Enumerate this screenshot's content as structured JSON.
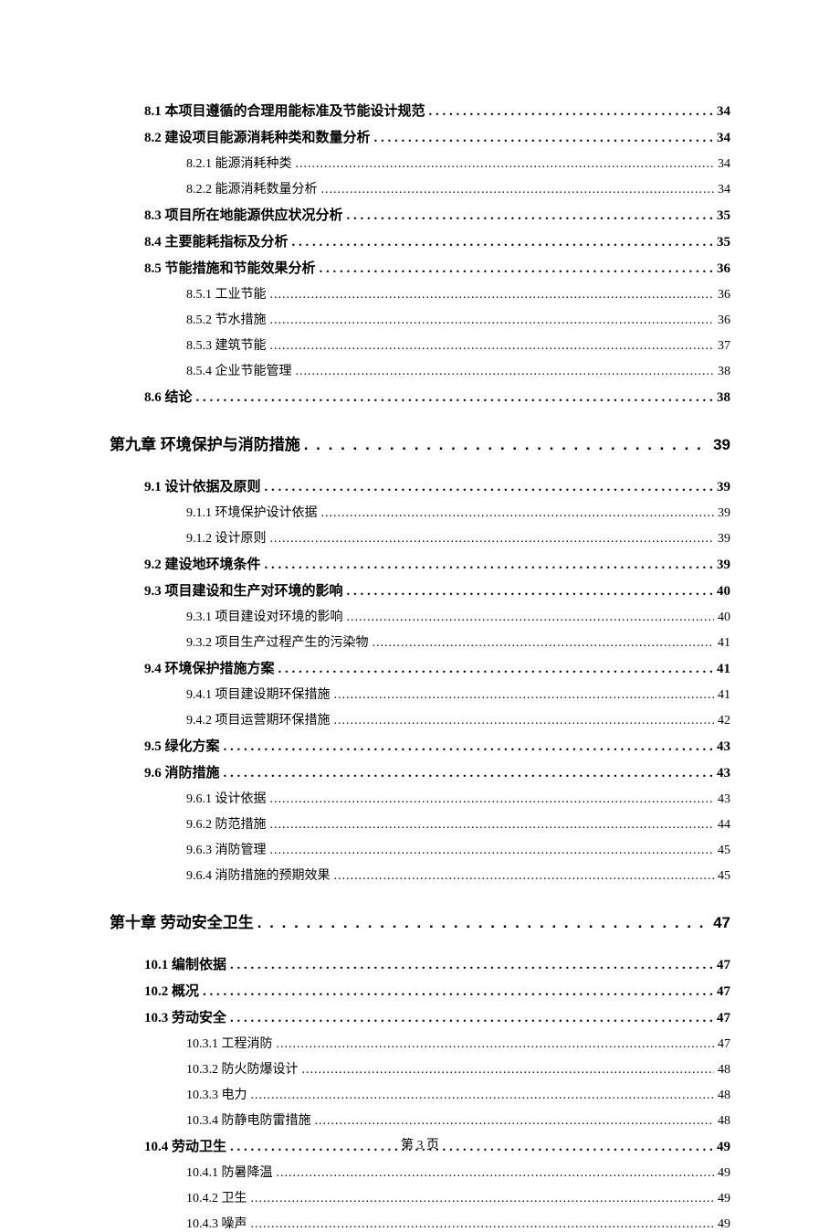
{
  "page_footer": "第 3 页",
  "colors": {
    "text": "#000000",
    "background": "#ffffff"
  },
  "fonts": {
    "chapter_size": 17,
    "section_size": 15,
    "subsection_size": 14,
    "footer_size": 14
  },
  "entries": [
    {
      "level": "section",
      "label": "8.1 本项目遵循的合理用能标准及节能设计规范",
      "page": "34"
    },
    {
      "level": "section",
      "label": "8.2 建设项目能源消耗种类和数量分析",
      "page": "34"
    },
    {
      "level": "subsection",
      "label": "8.2.1 能源消耗种类",
      "page": "34"
    },
    {
      "level": "subsection",
      "label": "8.2.2 能源消耗数量分析",
      "page": "34"
    },
    {
      "level": "section",
      "label": "8.3 项目所在地能源供应状况分析",
      "page": "35"
    },
    {
      "level": "section",
      "label": "8.4 主要能耗指标及分析",
      "page": "35"
    },
    {
      "level": "section",
      "label": "8.5 节能措施和节能效果分析",
      "page": "36"
    },
    {
      "level": "subsection",
      "label": "8.5.1 工业节能",
      "page": "36"
    },
    {
      "level": "subsection",
      "label": "8.5.2 节水措施",
      "page": "36"
    },
    {
      "level": "subsection",
      "label": "8.5.3 建筑节能",
      "page": "37"
    },
    {
      "level": "subsection",
      "label": "8.5.4 企业节能管理",
      "page": "38"
    },
    {
      "level": "section",
      "label": "8.6 结论",
      "page": "38"
    },
    {
      "level": "chapter",
      "label": "第九章  环境保护与消防措施",
      "page": "39"
    },
    {
      "level": "section",
      "label": "9.1 设计依据及原则",
      "page": "39"
    },
    {
      "level": "subsection",
      "label": "9.1.1 环境保护设计依据",
      "page": "39"
    },
    {
      "level": "subsection",
      "label": "9.1.2 设计原则",
      "page": "39"
    },
    {
      "level": "section",
      "label": "9.2 建设地环境条件",
      "page": "39"
    },
    {
      "level": "section",
      "label": "9.3  项目建设和生产对环境的影响",
      "page": "40"
    },
    {
      "level": "subsection",
      "label": "9.3.1  项目建设对环境的影响",
      "page": "40"
    },
    {
      "level": "subsection",
      "label": "9.3.2  项目生产过程产生的污染物",
      "page": "41"
    },
    {
      "level": "section",
      "label": "9.4  环境保护措施方案",
      "page": "41"
    },
    {
      "level": "subsection",
      "label": "9.4.1  项目建设期环保措施",
      "page": "41"
    },
    {
      "level": "subsection",
      "label": "9.4.2  项目运营期环保措施",
      "page": "42"
    },
    {
      "level": "section",
      "label": "9.5 绿化方案",
      "page": "43"
    },
    {
      "level": "section",
      "label": "9.6 消防措施",
      "page": "43"
    },
    {
      "level": "subsection",
      "label": "9.6.1 设计依据",
      "page": "43"
    },
    {
      "level": "subsection",
      "label": "9.6.2 防范措施",
      "page": "44"
    },
    {
      "level": "subsection",
      "label": "9.6.3 消防管理",
      "page": "45"
    },
    {
      "level": "subsection",
      "label": "9.6.4 消防措施的预期效果",
      "page": "45"
    },
    {
      "level": "chapter",
      "label": "第十章  劳动安全卫生",
      "page": "47"
    },
    {
      "level": "section",
      "label": "10.1  编制依据",
      "page": "47"
    },
    {
      "level": "section",
      "label": "10.2 概况",
      "page": "47"
    },
    {
      "level": "section",
      "label": "10.3  劳动安全",
      "page": "47"
    },
    {
      "level": "subsection",
      "label": "10.3.1 工程消防",
      "page": "47"
    },
    {
      "level": "subsection",
      "label": "10.3.2 防火防爆设计",
      "page": "48"
    },
    {
      "level": "subsection",
      "label": "10.3.3 电力",
      "page": "48"
    },
    {
      "level": "subsection",
      "label": "10.3.4 防静电防雷措施",
      "page": "48"
    },
    {
      "level": "section",
      "label": "10.4 劳动卫生",
      "page": "49"
    },
    {
      "level": "subsection",
      "label": "10.4.1 防暑降温",
      "page": "49"
    },
    {
      "level": "subsection",
      "label": "10.4.2 卫生",
      "page": "49"
    },
    {
      "level": "subsection",
      "label": "10.4.3 噪声",
      "page": "49"
    }
  ]
}
